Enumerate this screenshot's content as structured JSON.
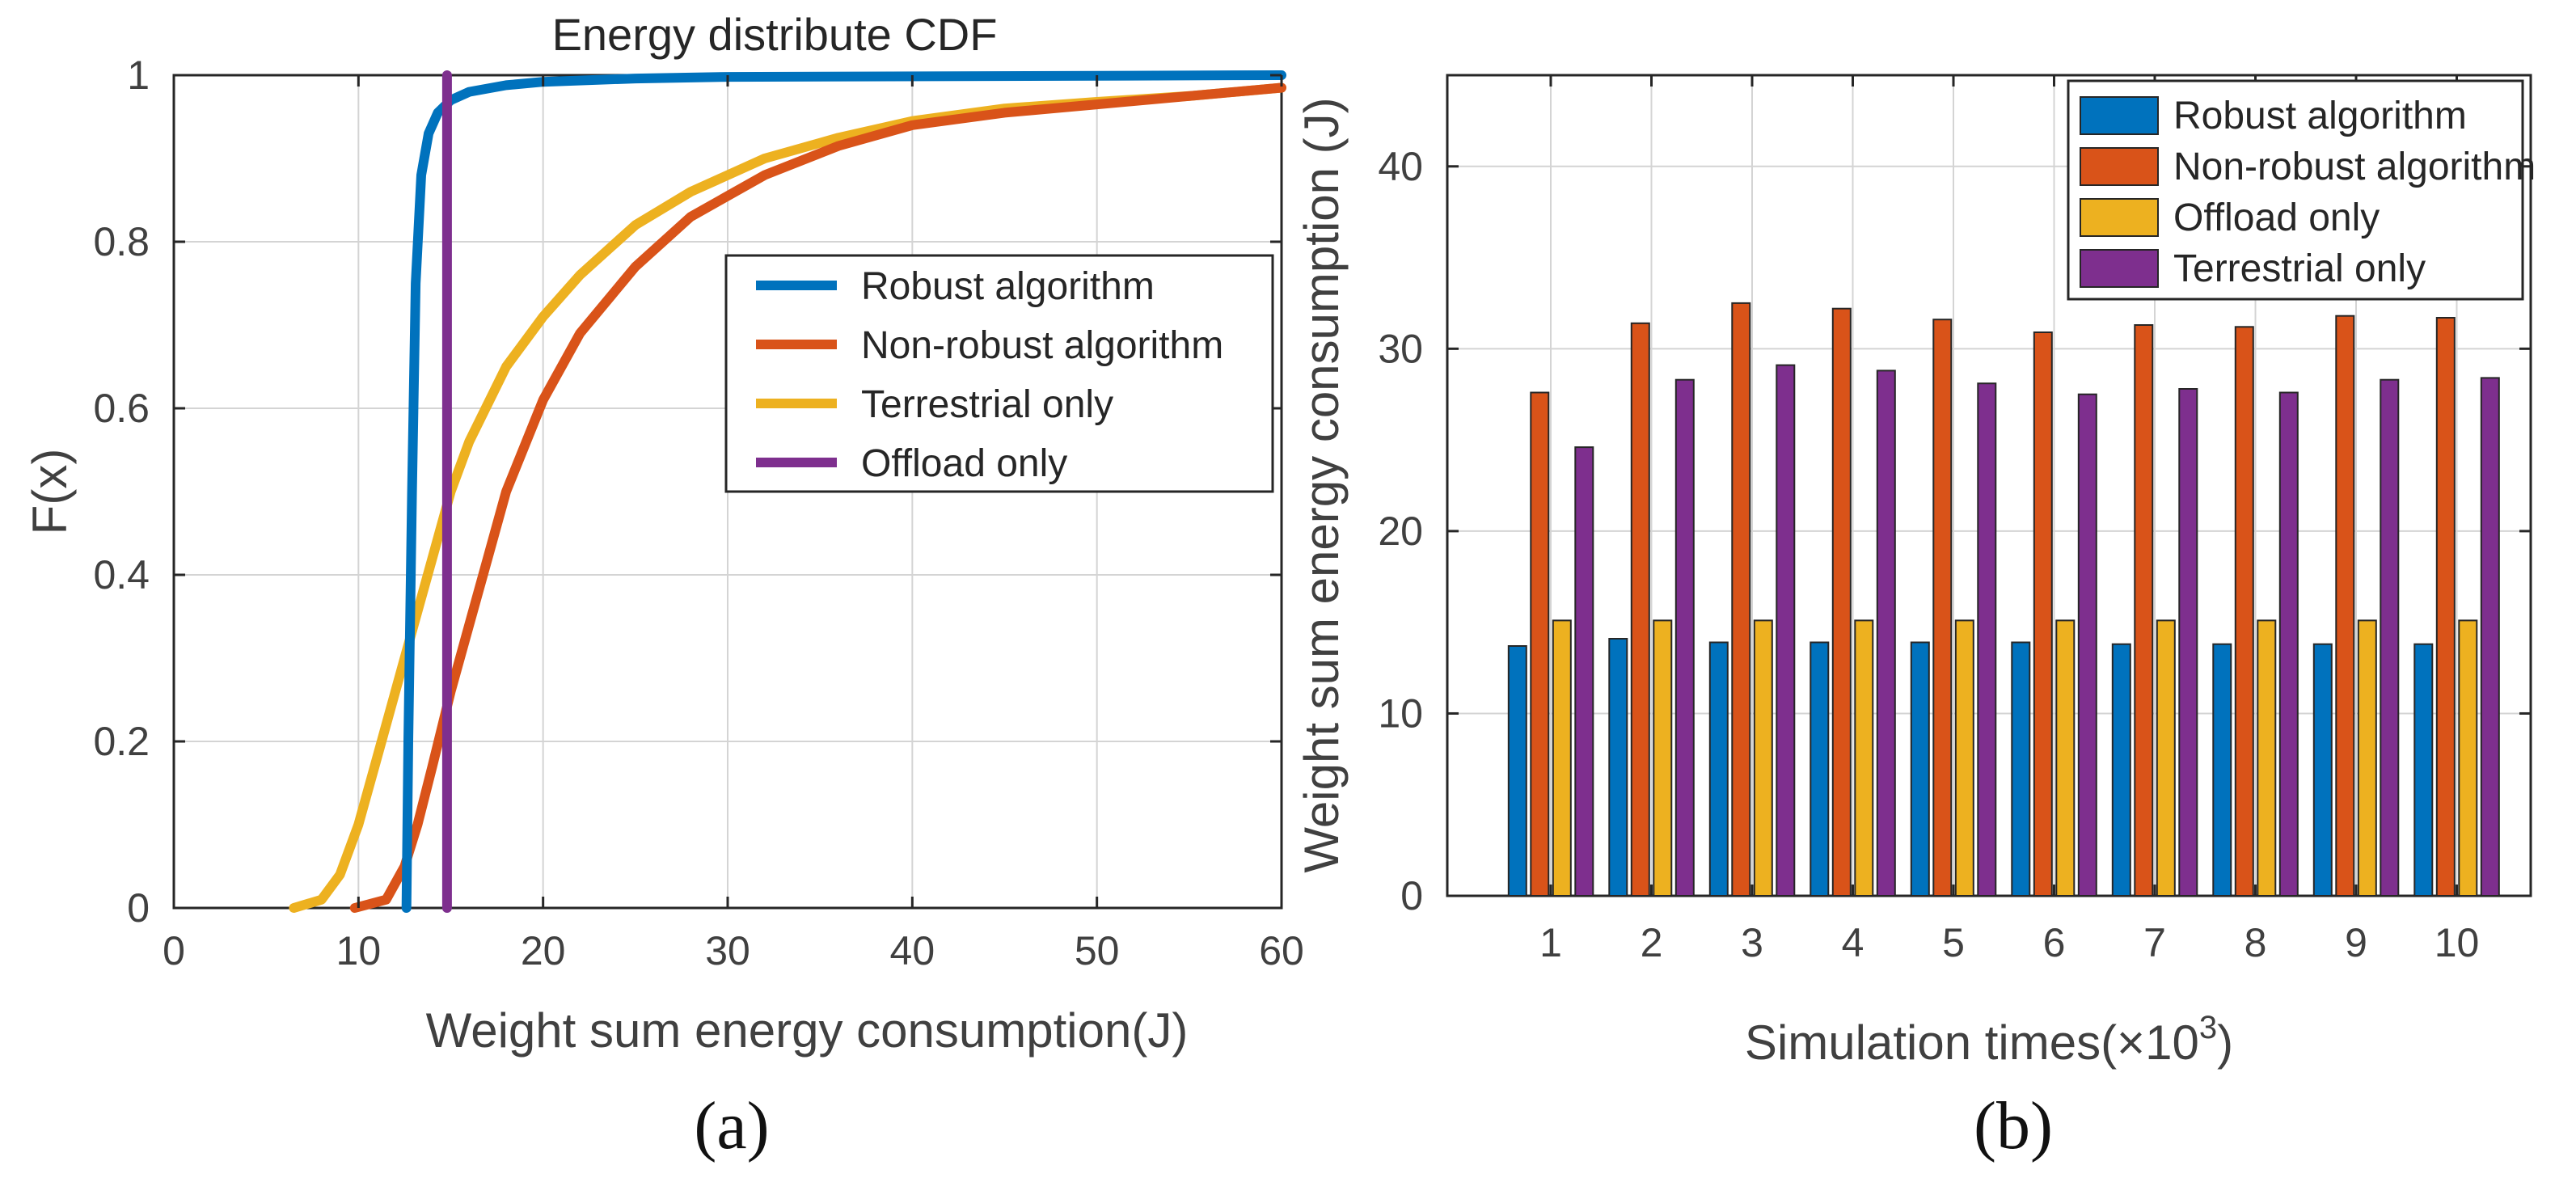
{
  "chart_data": [
    {
      "type": "line",
      "panel_label": "(a)",
      "title": "Energy distribute CDF",
      "xlabel": "Weight sum energy consumption(J)",
      "ylabel": "F(x)",
      "xlim": [
        0,
        60
      ],
      "ylim": [
        0,
        1
      ],
      "xticks": [
        "0",
        "10",
        "20",
        "30",
        "40",
        "50",
        "60"
      ],
      "yticks": [
        "0",
        "0.2",
        "0.4",
        "0.6",
        "0.8",
        "1"
      ],
      "grid": true,
      "legend_position": "center-right",
      "legend": [
        "Robust algorithm",
        "Non-robust algorithm",
        "Terrestrial only",
        "Offload only"
      ],
      "series": [
        {
          "name": "Robust algorithm",
          "color": "#0072BD",
          "x": [
            12.6,
            12.7,
            12.9,
            13.1,
            13.4,
            13.8,
            14.3,
            15,
            16,
            18,
            20,
            25,
            30,
            60
          ],
          "y": [
            0,
            0.2,
            0.5,
            0.75,
            0.88,
            0.93,
            0.955,
            0.97,
            0.98,
            0.988,
            0.992,
            0.996,
            0.998,
            1.0
          ]
        },
        {
          "name": "Non-robust algorithm",
          "color": "#D95319",
          "x": [
            9.8,
            11.5,
            12.5,
            13.2,
            14,
            15,
            16,
            17,
            18,
            20,
            22,
            25,
            28,
            32,
            36,
            40,
            45,
            50,
            55,
            60
          ],
          "y": [
            0,
            0.01,
            0.05,
            0.1,
            0.17,
            0.26,
            0.34,
            0.42,
            0.5,
            0.61,
            0.69,
            0.77,
            0.83,
            0.88,
            0.915,
            0.94,
            0.955,
            0.965,
            0.975,
            0.985
          ]
        },
        {
          "name": "Terrestrial only",
          "color": "#EDB120",
          "x": [
            6.5,
            8,
            9,
            10,
            11,
            12,
            13,
            14,
            15,
            16,
            18,
            20,
            22,
            25,
            28,
            32,
            36,
            40,
            45,
            50,
            55,
            60
          ],
          "y": [
            0,
            0.01,
            0.04,
            0.1,
            0.18,
            0.26,
            0.34,
            0.42,
            0.5,
            0.56,
            0.65,
            0.71,
            0.76,
            0.82,
            0.86,
            0.9,
            0.925,
            0.945,
            0.96,
            0.968,
            0.975,
            0.985
          ]
        },
        {
          "name": "Offload only",
          "color": "#7E2F8E",
          "x": [
            14.8,
            14.8
          ],
          "y": [
            0,
            1
          ]
        }
      ]
    },
    {
      "type": "bar",
      "panel_label": "(b)",
      "xlabel_main": "Simulation times(×10",
      "xlabel_sup": "3",
      "xlabel_close": ")",
      "ylabel": "Weight sum energy consumption (J)",
      "ylim": [
        0,
        45
      ],
      "yticks": [
        "0",
        "10",
        "20",
        "30",
        "40"
      ],
      "categories": [
        "1",
        "2",
        "3",
        "4",
        "5",
        "6",
        "7",
        "8",
        "9",
        "10"
      ],
      "grid": true,
      "legend_position": "top-right",
      "series": [
        {
          "name": "Robust algorithm",
          "color": "#0072BD",
          "values": [
            13.7,
            14.1,
            13.9,
            13.9,
            13.9,
            13.9,
            13.8,
            13.8,
            13.8,
            13.8
          ]
        },
        {
          "name": "Non-robust algorithm",
          "color": "#D95319",
          "values": [
            27.6,
            31.4,
            32.5,
            32.2,
            31.6,
            30.9,
            31.3,
            31.2,
            31.8,
            31.7
          ]
        },
        {
          "name": "Offload only",
          "color": "#EDB120",
          "values": [
            15.1,
            15.1,
            15.1,
            15.1,
            15.1,
            15.1,
            15.1,
            15.1,
            15.1,
            15.1
          ]
        },
        {
          "name": "Terrestrial only",
          "color": "#7E2F8E",
          "values": [
            24.6,
            28.3,
            29.1,
            28.8,
            28.1,
            27.5,
            27.8,
            27.6,
            28.3,
            28.4
          ]
        }
      ]
    }
  ]
}
